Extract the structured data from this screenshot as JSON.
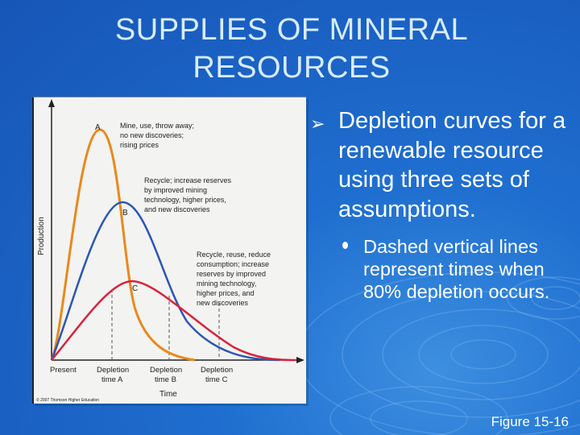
{
  "slide": {
    "title_line1": "SUPPLIES OF MINERAL",
    "title_line2": "RESOURCES",
    "bullet_main": "Depletion curves for a renewable resource using three sets of assumptions.",
    "bullet_sub": "Dashed vertical lines represent times when 80% depletion occurs.",
    "figure_caption": "Figure 15-16",
    "arrow_icon": "arrow-bullet-icon",
    "dot_icon": "round-bullet-icon",
    "colors": {
      "background": "#1a60c2",
      "title": "#d8ecff",
      "curve_a": "#e8891c",
      "curve_b": "#2a55b8",
      "curve_c": "#d8233a"
    }
  },
  "figure": {
    "y_axis_label": "Production",
    "x_axis_label": "Time",
    "x_labels": [
      {
        "line1": "Present",
        "line2": ""
      },
      {
        "line1": "Depletion",
        "line2": "time A"
      },
      {
        "line1": "Depletion",
        "line2": "time B"
      },
      {
        "line1": "Depletion",
        "line2": "time C"
      }
    ],
    "curve_letters": [
      "A",
      "B",
      "C"
    ],
    "annotation_a": [
      "Mine, use, throw away;",
      "no new discoveries;",
      "rising prices"
    ],
    "annotation_b": [
      "Recycle; increase reserves",
      "by improved mining",
      "technology, higher prices,",
      "and new discoveries"
    ],
    "annotation_c": [
      "Recycle, reuse, reduce",
      "consumption; increase",
      "reserves by improved",
      "mining technology,",
      "higher prices, and",
      "new discoveries"
    ],
    "copyright": "© 2007 Thomson Higher Education"
  }
}
